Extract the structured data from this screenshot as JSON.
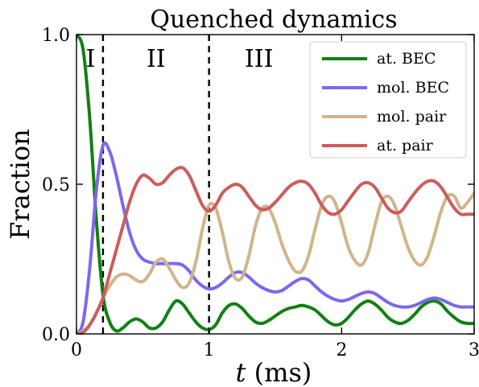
{
  "chart_data": {
    "type": "line",
    "title": "Quenched dynamics",
    "xlabel": "t (ms)",
    "ylabel": "Fraction",
    "xlim": [
      0,
      3
    ],
    "ylim": [
      0,
      1
    ],
    "xticks": [
      0,
      1,
      2,
      3
    ],
    "xtick_labels": [
      "0",
      "1",
      "2",
      "3"
    ],
    "yticks": [
      0,
      0.5,
      1
    ],
    "ytick_labels": [
      "0.0",
      "0.5",
      "1.0"
    ],
    "grid": false,
    "legend_position": "top-right",
    "region_markers": [
      {
        "label": "I",
        "x_start": 0,
        "x_end": 0.2
      },
      {
        "label": "II",
        "x_start": 0.2,
        "x_end": 1.0
      },
      {
        "label": "III",
        "x_start": 1.0,
        "x_end": 3.0
      }
    ],
    "dividers_x": [
      0.2,
      1.0
    ],
    "series": [
      {
        "name": "at. BEC",
        "color": "#118011",
        "points": [
          [
            0,
            1.0
          ],
          [
            0.05,
            0.95
          ],
          [
            0.1,
            0.72
          ],
          [
            0.15,
            0.38
          ],
          [
            0.2,
            0.13
          ],
          [
            0.25,
            0.04
          ],
          [
            0.3,
            0.01
          ],
          [
            0.35,
            0.02
          ],
          [
            0.4,
            0.04
          ],
          [
            0.45,
            0.05
          ],
          [
            0.5,
            0.04
          ],
          [
            0.55,
            0.02
          ],
          [
            0.6,
            0.02
          ],
          [
            0.65,
            0.04
          ],
          [
            0.7,
            0.08
          ],
          [
            0.75,
            0.11
          ],
          [
            0.8,
            0.1
          ],
          [
            0.85,
            0.07
          ],
          [
            0.9,
            0.04
          ],
          [
            0.95,
            0.02
          ],
          [
            1.0,
            0.015
          ],
          [
            1.05,
            0.03
          ],
          [
            1.1,
            0.07
          ],
          [
            1.15,
            0.095
          ],
          [
            1.2,
            0.1
          ],
          [
            1.25,
            0.085
          ],
          [
            1.3,
            0.06
          ],
          [
            1.35,
            0.04
          ],
          [
            1.4,
            0.035
          ],
          [
            1.45,
            0.045
          ],
          [
            1.5,
            0.06
          ],
          [
            1.55,
            0.075
          ],
          [
            1.6,
            0.085
          ],
          [
            1.65,
            0.09
          ],
          [
            1.7,
            0.095
          ],
          [
            1.75,
            0.09
          ],
          [
            1.8,
            0.08
          ],
          [
            1.85,
            0.06
          ],
          [
            1.9,
            0.04
          ],
          [
            1.95,
            0.03
          ],
          [
            2.0,
            0.035
          ],
          [
            2.05,
            0.055
          ],
          [
            2.1,
            0.08
          ],
          [
            2.15,
            0.1
          ],
          [
            2.2,
            0.11
          ],
          [
            2.25,
            0.1
          ],
          [
            2.3,
            0.08
          ],
          [
            2.35,
            0.055
          ],
          [
            2.4,
            0.04
          ],
          [
            2.45,
            0.035
          ],
          [
            2.5,
            0.045
          ],
          [
            2.55,
            0.065
          ],
          [
            2.6,
            0.09
          ],
          [
            2.65,
            0.105
          ],
          [
            2.7,
            0.11
          ],
          [
            2.75,
            0.1
          ],
          [
            2.8,
            0.075
          ],
          [
            2.85,
            0.055
          ],
          [
            2.9,
            0.04
          ],
          [
            2.95,
            0.035
          ],
          [
            3.0,
            0.035
          ]
        ]
      },
      {
        "name": "mol. BEC",
        "color": "#7b68ee",
        "points": [
          [
            0,
            0.0
          ],
          [
            0.05,
            0.04
          ],
          [
            0.1,
            0.22
          ],
          [
            0.15,
            0.48
          ],
          [
            0.2,
            0.63
          ],
          [
            0.25,
            0.61
          ],
          [
            0.3,
            0.53
          ],
          [
            0.35,
            0.43
          ],
          [
            0.4,
            0.34
          ],
          [
            0.45,
            0.28
          ],
          [
            0.5,
            0.25
          ],
          [
            0.55,
            0.24
          ],
          [
            0.6,
            0.235
          ],
          [
            0.65,
            0.235
          ],
          [
            0.7,
            0.235
          ],
          [
            0.75,
            0.235
          ],
          [
            0.8,
            0.23
          ],
          [
            0.85,
            0.21
          ],
          [
            0.9,
            0.18
          ],
          [
            0.95,
            0.16
          ],
          [
            1.0,
            0.15
          ],
          [
            1.05,
            0.155
          ],
          [
            1.1,
            0.17
          ],
          [
            1.15,
            0.19
          ],
          [
            1.2,
            0.205
          ],
          [
            1.25,
            0.205
          ],
          [
            1.3,
            0.19
          ],
          [
            1.35,
            0.17
          ],
          [
            1.4,
            0.155
          ],
          [
            1.45,
            0.145
          ],
          [
            1.5,
            0.14
          ],
          [
            1.55,
            0.145
          ],
          [
            1.6,
            0.16
          ],
          [
            1.65,
            0.175
          ],
          [
            1.7,
            0.185
          ],
          [
            1.75,
            0.18
          ],
          [
            1.8,
            0.16
          ],
          [
            1.85,
            0.14
          ],
          [
            1.9,
            0.125
          ],
          [
            1.95,
            0.115
          ],
          [
            2.0,
            0.11
          ],
          [
            2.05,
            0.115
          ],
          [
            2.1,
            0.125
          ],
          [
            2.15,
            0.135
          ],
          [
            2.2,
            0.14
          ],
          [
            2.25,
            0.135
          ],
          [
            2.3,
            0.12
          ],
          [
            2.35,
            0.105
          ],
          [
            2.4,
            0.095
          ],
          [
            2.45,
            0.09
          ],
          [
            2.5,
            0.09
          ],
          [
            2.55,
            0.095
          ],
          [
            2.6,
            0.105
          ],
          [
            2.65,
            0.115
          ],
          [
            2.7,
            0.12
          ],
          [
            2.75,
            0.115
          ],
          [
            2.8,
            0.105
          ],
          [
            2.85,
            0.095
          ],
          [
            2.9,
            0.09
          ],
          [
            2.95,
            0.09
          ],
          [
            3.0,
            0.09
          ]
        ]
      },
      {
        "name": "mol. pair",
        "color": "#d2b48c",
        "points": [
          [
            0,
            0.0
          ],
          [
            0.05,
            0.01
          ],
          [
            0.1,
            0.03
          ],
          [
            0.15,
            0.07
          ],
          [
            0.2,
            0.12
          ],
          [
            0.25,
            0.16
          ],
          [
            0.3,
            0.19
          ],
          [
            0.35,
            0.2
          ],
          [
            0.4,
            0.195
          ],
          [
            0.45,
            0.18
          ],
          [
            0.5,
            0.175
          ],
          [
            0.55,
            0.2
          ],
          [
            0.6,
            0.24
          ],
          [
            0.65,
            0.25
          ],
          [
            0.7,
            0.22
          ],
          [
            0.75,
            0.18
          ],
          [
            0.8,
            0.155
          ],
          [
            0.85,
            0.17
          ],
          [
            0.9,
            0.24
          ],
          [
            0.95,
            0.35
          ],
          [
            1.0,
            0.43
          ],
          [
            1.05,
            0.42
          ],
          [
            1.1,
            0.34
          ],
          [
            1.15,
            0.24
          ],
          [
            1.2,
            0.185
          ],
          [
            1.25,
            0.19
          ],
          [
            1.3,
            0.26
          ],
          [
            1.35,
            0.36
          ],
          [
            1.4,
            0.42
          ],
          [
            1.45,
            0.42
          ],
          [
            1.5,
            0.37
          ],
          [
            1.55,
            0.3
          ],
          [
            1.6,
            0.245
          ],
          [
            1.65,
            0.21
          ],
          [
            1.7,
            0.21
          ],
          [
            1.75,
            0.26
          ],
          [
            1.8,
            0.35
          ],
          [
            1.85,
            0.43
          ],
          [
            1.9,
            0.46
          ],
          [
            1.95,
            0.44
          ],
          [
            2.0,
            0.37
          ],
          [
            2.05,
            0.29
          ],
          [
            2.1,
            0.245
          ],
          [
            2.15,
            0.23
          ],
          [
            2.2,
            0.27
          ],
          [
            2.25,
            0.36
          ],
          [
            2.3,
            0.44
          ],
          [
            2.35,
            0.46
          ],
          [
            2.4,
            0.43
          ],
          [
            2.45,
            0.36
          ],
          [
            2.5,
            0.29
          ],
          [
            2.55,
            0.245
          ],
          [
            2.6,
            0.23
          ],
          [
            2.65,
            0.26
          ],
          [
            2.7,
            0.33
          ],
          [
            2.75,
            0.41
          ],
          [
            2.8,
            0.46
          ],
          [
            2.85,
            0.46
          ],
          [
            2.9,
            0.42
          ],
          [
            2.95,
            0.44
          ],
          [
            3.0,
            0.47
          ]
        ]
      },
      {
        "name": "at. pair",
        "color": "#cd5c5c",
        "points": [
          [
            0,
            0.0
          ],
          [
            0.05,
            0.005
          ],
          [
            0.1,
            0.03
          ],
          [
            0.15,
            0.07
          ],
          [
            0.2,
            0.12
          ],
          [
            0.25,
            0.2
          ],
          [
            0.3,
            0.28
          ],
          [
            0.35,
            0.36
          ],
          [
            0.4,
            0.44
          ],
          [
            0.45,
            0.5
          ],
          [
            0.5,
            0.53
          ],
          [
            0.55,
            0.52
          ],
          [
            0.6,
            0.5
          ],
          [
            0.65,
            0.505
          ],
          [
            0.7,
            0.53
          ],
          [
            0.75,
            0.55
          ],
          [
            0.8,
            0.555
          ],
          [
            0.85,
            0.53
          ],
          [
            0.9,
            0.48
          ],
          [
            0.95,
            0.43
          ],
          [
            1.0,
            0.41
          ],
          [
            1.05,
            0.43
          ],
          [
            1.1,
            0.47
          ],
          [
            1.15,
            0.49
          ],
          [
            1.2,
            0.5
          ],
          [
            1.25,
            0.49
          ],
          [
            1.3,
            0.46
          ],
          [
            1.35,
            0.43
          ],
          [
            1.4,
            0.415
          ],
          [
            1.45,
            0.42
          ],
          [
            1.5,
            0.44
          ],
          [
            1.55,
            0.465
          ],
          [
            1.6,
            0.49
          ],
          [
            1.65,
            0.505
          ],
          [
            1.7,
            0.51
          ],
          [
            1.75,
            0.5
          ],
          [
            1.8,
            0.47
          ],
          [
            1.85,
            0.43
          ],
          [
            1.9,
            0.405
          ],
          [
            1.95,
            0.4
          ],
          [
            2.0,
            0.415
          ],
          [
            2.05,
            0.445
          ],
          [
            2.1,
            0.475
          ],
          [
            2.15,
            0.5
          ],
          [
            2.2,
            0.505
          ],
          [
            2.25,
            0.49
          ],
          [
            2.3,
            0.455
          ],
          [
            2.35,
            0.42
          ],
          [
            2.4,
            0.405
          ],
          [
            2.45,
            0.41
          ],
          [
            2.5,
            0.44
          ],
          [
            2.55,
            0.47
          ],
          [
            2.6,
            0.495
          ],
          [
            2.65,
            0.51
          ],
          [
            2.7,
            0.51
          ],
          [
            2.75,
            0.49
          ],
          [
            2.8,
            0.455
          ],
          [
            2.85,
            0.42
          ],
          [
            2.9,
            0.4
          ],
          [
            2.95,
            0.4
          ],
          [
            3.0,
            0.4
          ]
        ]
      }
    ]
  }
}
